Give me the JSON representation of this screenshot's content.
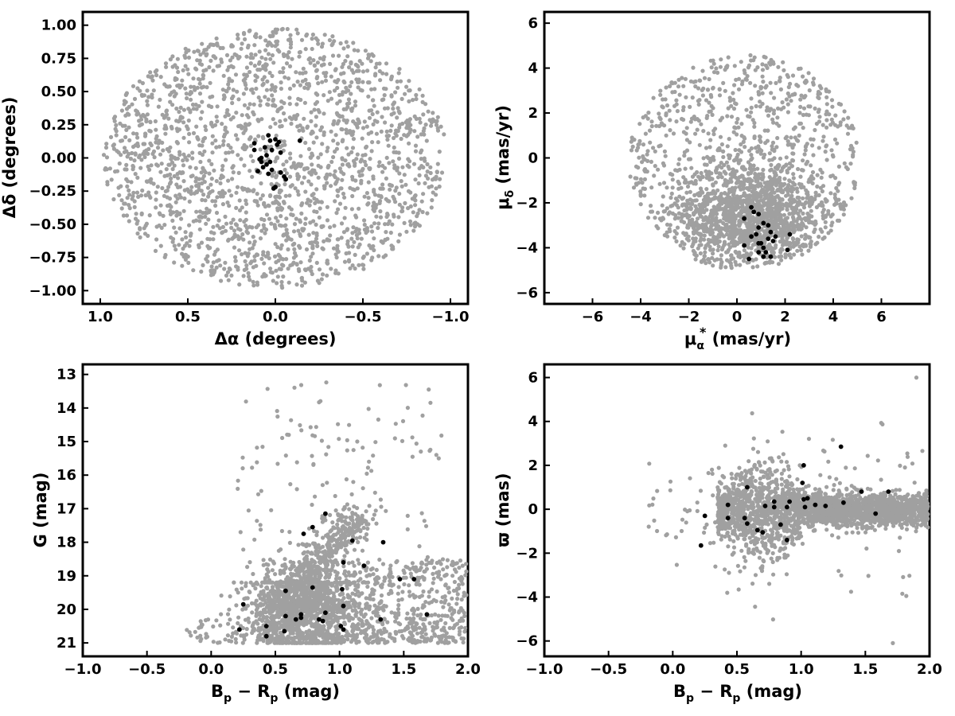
{
  "colors": {
    "field_stars": "#a0a0a0",
    "members": "#000000",
    "axes": "#000000",
    "background": "#ffffff"
  },
  "chart_data": [
    {
      "id": "sky",
      "type": "scatter",
      "xlabel": "Δα (degrees)",
      "ylabel": "Δδ (degrees)",
      "xlim": [
        1.1,
        -1.1
      ],
      "ylim": [
        -1.1,
        1.1
      ],
      "x_inverted": true,
      "xticks": [
        1.0,
        0.5,
        0.0,
        -0.5,
        -1.0
      ],
      "xtick_labels": [
        "1.0",
        "0.5",
        "0.0",
        "−0.5",
        "−1.0"
      ],
      "yticks": [
        -1.0,
        -0.75,
        -0.5,
        -0.25,
        0.0,
        0.25,
        0.5,
        0.75,
        1.0
      ],
      "ytick_labels": [
        "−1.00",
        "−0.75",
        "−0.50",
        "−0.25",
        "0.00",
        "0.25",
        "0.50",
        "0.75",
        "1.00"
      ],
      "grid": false,
      "background_population": {
        "shape": "disk",
        "center": [
          0,
          0
        ],
        "radius_x": 1.0,
        "radius_y": 1.0
      },
      "series": [
        {
          "role": "members",
          "points": [
            [
              0.04,
              0.17
            ],
            [
              0.0,
              0.14
            ],
            [
              0.03,
              0.13
            ],
            [
              -0.02,
              0.12
            ],
            [
              -0.01,
              0.1
            ],
            [
              0.12,
              0.11
            ],
            [
              -0.14,
              0.13
            ],
            [
              0.06,
              0.08
            ],
            [
              0.02,
              0.06
            ],
            [
              0.12,
              0.06
            ],
            [
              -0.03,
              0.04
            ],
            [
              0.05,
              0.02
            ],
            [
              0.08,
              0.0
            ],
            [
              0.09,
              -0.01
            ],
            [
              0.03,
              -0.03
            ],
            [
              0.05,
              -0.05
            ],
            [
              0.07,
              -0.07
            ],
            [
              0.02,
              -0.09
            ],
            [
              0.1,
              -0.1
            ],
            [
              -0.03,
              -0.11
            ],
            [
              0.04,
              -0.12
            ],
            [
              -0.05,
              -0.14
            ],
            [
              -0.06,
              -0.16
            ],
            [
              0.0,
              -0.22
            ],
            [
              0.01,
              -0.23
            ],
            [
              0.08,
              -0.03
            ]
          ]
        }
      ]
    },
    {
      "id": "proper-motion",
      "type": "scatter",
      "xlabel_main": "μ",
      "xlabel_sub": "α",
      "xlabel_sup": "*",
      "xlabel_unit": "(mas/yr)",
      "ylabel_main": "μ",
      "ylabel_sub": "δ",
      "ylabel_unit": "(mas/yr)",
      "xlim": [
        -8,
        8
      ],
      "ylim": [
        -6.5,
        6.5
      ],
      "xticks": [
        -6,
        -4,
        -2,
        0,
        2,
        4,
        6
      ],
      "xtick_labels": [
        "−6",
        "−4",
        "−2",
        "0",
        "2",
        "4",
        "6"
      ],
      "yticks": [
        -6,
        -4,
        -2,
        0,
        2,
        4,
        6
      ],
      "ytick_labels": [
        "−6",
        "−4",
        "−2",
        "0",
        "2",
        "4",
        "6"
      ],
      "grid": false,
      "background_population": {
        "shape": "disk-clipped",
        "center": [
          0.3,
          -0.2
        ],
        "radius": 4.8,
        "ymin": -4.9,
        "core": [
          0.6,
          -2.3
        ]
      },
      "series": [
        {
          "role": "members",
          "points": [
            [
              0.6,
              -2.2
            ],
            [
              0.7,
              -2.4
            ],
            [
              0.3,
              -2.7
            ],
            [
              0.9,
              -2.5
            ],
            [
              1.1,
              -2.9
            ],
            [
              1.3,
              -3.0
            ],
            [
              0.9,
              -3.1
            ],
            [
              1.4,
              -3.3
            ],
            [
              1.6,
              -3.5
            ],
            [
              0.6,
              -3.5
            ],
            [
              0.8,
              -3.4
            ],
            [
              1.3,
              -3.6
            ],
            [
              1.5,
              -3.7
            ],
            [
              1.0,
              -3.8
            ],
            [
              0.9,
              -3.8
            ],
            [
              0.3,
              -3.9
            ],
            [
              1.1,
              -4.0
            ],
            [
              2.2,
              -3.4
            ],
            [
              1.2,
              -4.2
            ],
            [
              2.1,
              -4.1
            ],
            [
              0.9,
              -4.2
            ],
            [
              1.1,
              -4.4
            ],
            [
              1.4,
              -4.4
            ],
            [
              0.5,
              -4.5
            ]
          ]
        }
      ]
    },
    {
      "id": "cmd",
      "type": "scatter",
      "xlabel_main": "B",
      "xlabel_sub1": "p",
      "xlabel_mid": " − R",
      "xlabel_sub2": "p",
      "xlabel_unit": "(mag)",
      "ylabel": "G (mag)",
      "xlim": [
        -1.0,
        2.0
      ],
      "ylim": [
        21.4,
        12.7
      ],
      "y_inverted": true,
      "xticks": [
        -1.0,
        -0.5,
        0.0,
        0.5,
        1.0,
        1.5,
        2.0
      ],
      "xtick_labels": [
        "−1.0",
        "−0.5",
        "0.0",
        "0.5",
        "1.0",
        "1.5",
        "2.0"
      ],
      "yticks": [
        13,
        14,
        15,
        16,
        17,
        18,
        19,
        20,
        21
      ],
      "ytick_labels": [
        "13",
        "14",
        "15",
        "16",
        "17",
        "18",
        "19",
        "20",
        "21"
      ],
      "grid": false,
      "series": [
        {
          "role": "members",
          "points": [
            [
              0.22,
              20.6
            ],
            [
              0.25,
              19.85
            ],
            [
              0.43,
              20.8
            ],
            [
              0.43,
              20.5
            ],
            [
              0.57,
              20.65
            ],
            [
              0.58,
              20.2
            ],
            [
              0.58,
              19.45
            ],
            [
              0.66,
              20.3
            ],
            [
              0.7,
              20.25
            ],
            [
              0.7,
              20.15
            ],
            [
              0.72,
              17.75
            ],
            [
              0.79,
              19.35
            ],
            [
              0.79,
              17.55
            ],
            [
              0.84,
              20.3
            ],
            [
              0.87,
              20.35
            ],
            [
              0.89,
              20.1
            ],
            [
              0.89,
              17.15
            ],
            [
              1.01,
              20.5
            ],
            [
              1.02,
              19.4
            ],
            [
              1.03,
              20.6
            ],
            [
              1.03,
              19.9
            ],
            [
              1.03,
              18.6
            ],
            [
              1.1,
              17.95
            ],
            [
              1.19,
              18.7
            ],
            [
              1.32,
              20.3
            ],
            [
              1.34,
              18.0
            ],
            [
              1.47,
              19.1
            ],
            [
              1.58,
              19.1
            ],
            [
              1.68,
              20.15
            ]
          ]
        }
      ]
    },
    {
      "id": "parallax",
      "type": "scatter",
      "xlabel_main": "B",
      "xlabel_sub1": "p",
      "xlabel_mid": " − R",
      "xlabel_sub2": "p",
      "xlabel_unit": "(mag)",
      "ylabel": "ϖ (mas)",
      "xlim": [
        -1.0,
        2.0
      ],
      "ylim": [
        -6.7,
        6.6
      ],
      "xticks": [
        -1.0,
        -0.5,
        0.0,
        0.5,
        1.0,
        1.5,
        2.0
      ],
      "xtick_labels": [
        "−1.0",
        "−0.5",
        "0.0",
        "0.5",
        "1.0",
        "1.5",
        "2.0"
      ],
      "yticks": [
        -6,
        -4,
        -2,
        0,
        2,
        4,
        6
      ],
      "ytick_labels": [
        "−6",
        "−4",
        "−2",
        "0",
        "2",
        "4",
        "6"
      ],
      "grid": false,
      "series": [
        {
          "role": "members",
          "points": [
            [
              0.22,
              -1.65
            ],
            [
              0.25,
              -0.3
            ],
            [
              0.43,
              0.2
            ],
            [
              0.43,
              -0.4
            ],
            [
              0.56,
              -0.4
            ],
            [
              0.58,
              -0.65
            ],
            [
              0.58,
              1.0
            ],
            [
              0.66,
              -0.95
            ],
            [
              0.7,
              -1.05
            ],
            [
              0.72,
              0.15
            ],
            [
              0.79,
              0.35
            ],
            [
              0.79,
              0.1
            ],
            [
              0.84,
              -0.7
            ],
            [
              0.89,
              -1.4
            ],
            [
              0.89,
              0.1
            ],
            [
              0.91,
              0.35
            ],
            [
              1.01,
              1.2
            ],
            [
              1.02,
              2.0
            ],
            [
              1.02,
              0.45
            ],
            [
              1.03,
              0.1
            ],
            [
              1.05,
              0.5
            ],
            [
              1.11,
              0.2
            ],
            [
              1.19,
              0.15
            ],
            [
              1.31,
              2.85
            ],
            [
              1.33,
              0.3
            ],
            [
              1.47,
              0.8
            ],
            [
              1.58,
              -0.2
            ],
            [
              1.68,
              0.8
            ]
          ]
        }
      ]
    }
  ]
}
